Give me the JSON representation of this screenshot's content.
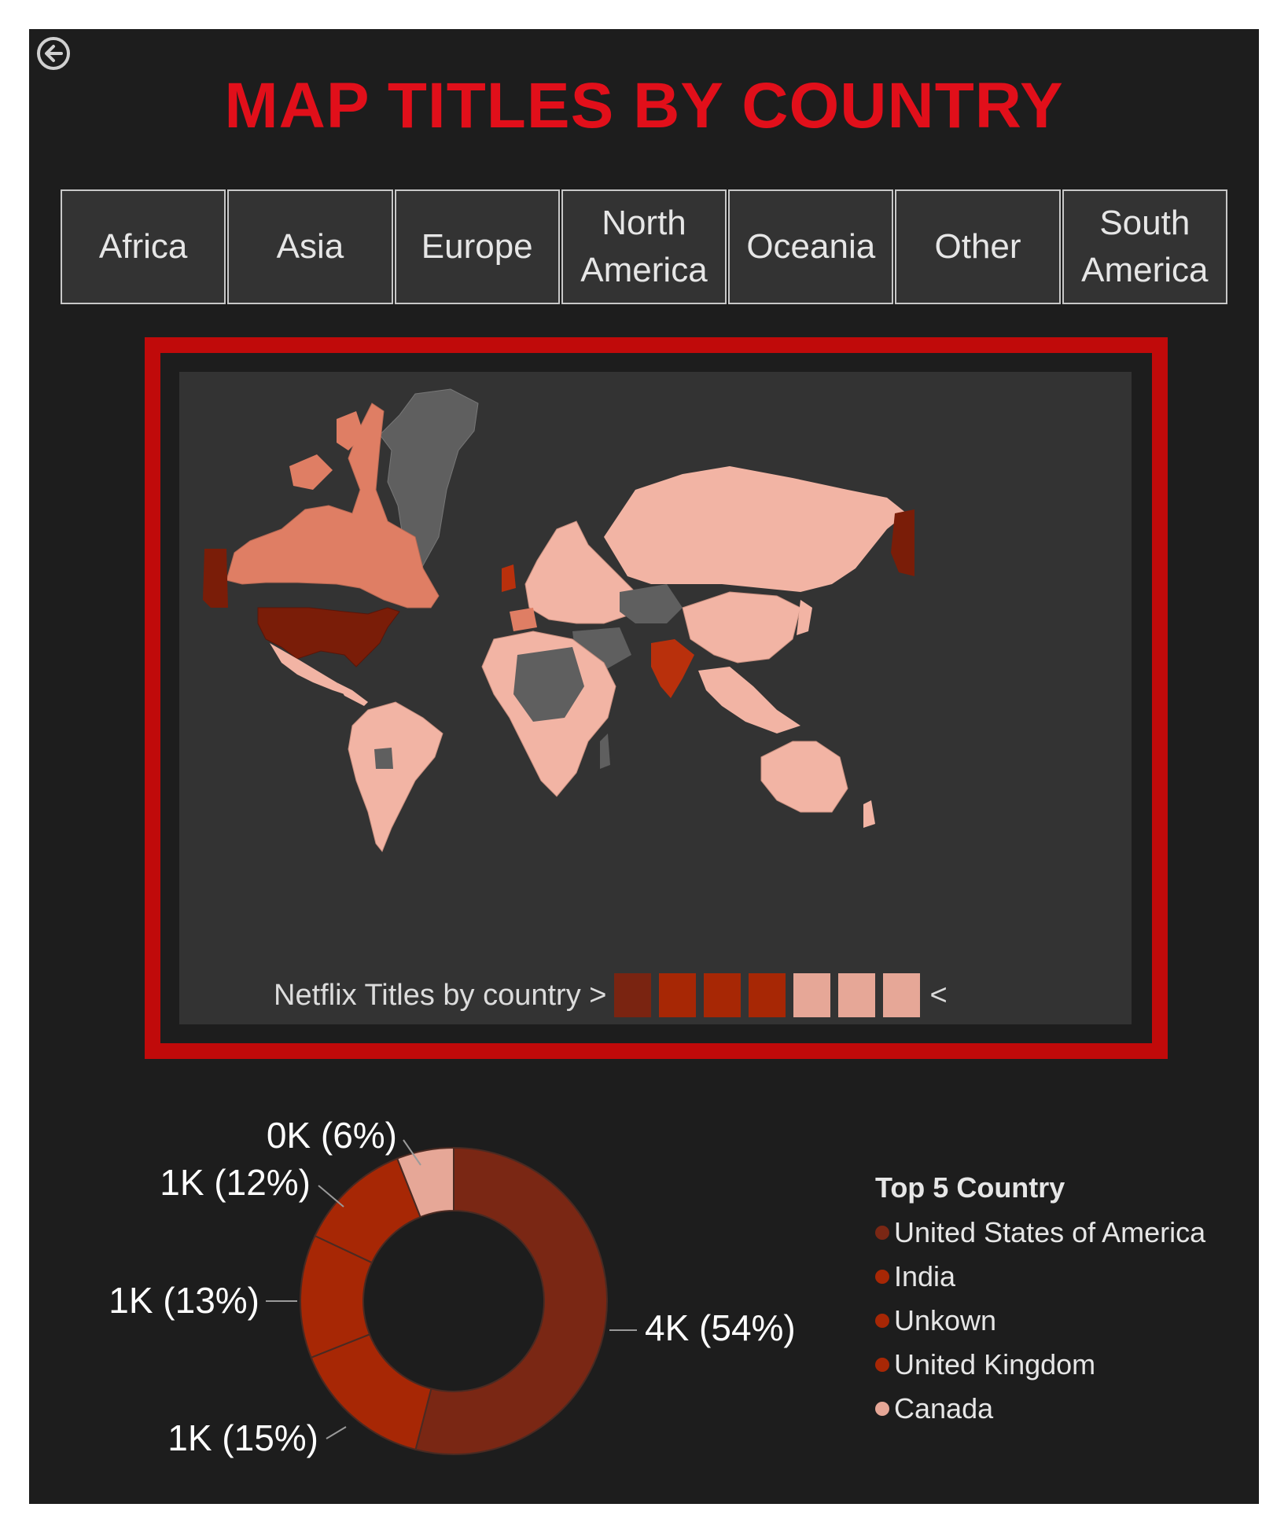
{
  "page_title": "MAP TITLES BY COUNTRY",
  "back_icon": "back-arrow-icon",
  "filters": [
    {
      "label": "Africa"
    },
    {
      "label": "Asia"
    },
    {
      "label": "Europe"
    },
    {
      "label": "North America"
    },
    {
      "label": "Oceania"
    },
    {
      "label": "Other"
    },
    {
      "label": "South America"
    }
  ],
  "map": {
    "legend_label": "Netflix Titles by country >",
    "legend_end": "<",
    "legend_colors": [
      "#7a2411",
      "#a72705",
      "#a72705",
      "#a72705",
      "#e6a797",
      "#e6a797",
      "#e6a797"
    ],
    "highlight_colors": {
      "top": "#7a1d08",
      "high": "#b9300c",
      "mid": "#df7e64",
      "low": "#f2b4a4",
      "none": "#5f5f5f"
    }
  },
  "chart_data": {
    "type": "pie",
    "donut": true,
    "title": "",
    "legend_title": "Top 5 Country",
    "legend_position": "right",
    "slices": [
      {
        "name": "United States of America",
        "label": "4K (54%)",
        "percent": 54,
        "color": "#7a2714"
      },
      {
        "name": "India",
        "label": "1K (15%)",
        "percent": 15,
        "color": "#a72705"
      },
      {
        "name": "Unkown",
        "label": "1K (13%)",
        "percent": 13,
        "color": "#a72705"
      },
      {
        "name": "United Kingdom",
        "label": "1K (12%)",
        "percent": 12,
        "color": "#a72705"
      },
      {
        "name": "Canada",
        "label": "0K (6%)",
        "percent": 6,
        "color": "#e6a797"
      }
    ]
  }
}
